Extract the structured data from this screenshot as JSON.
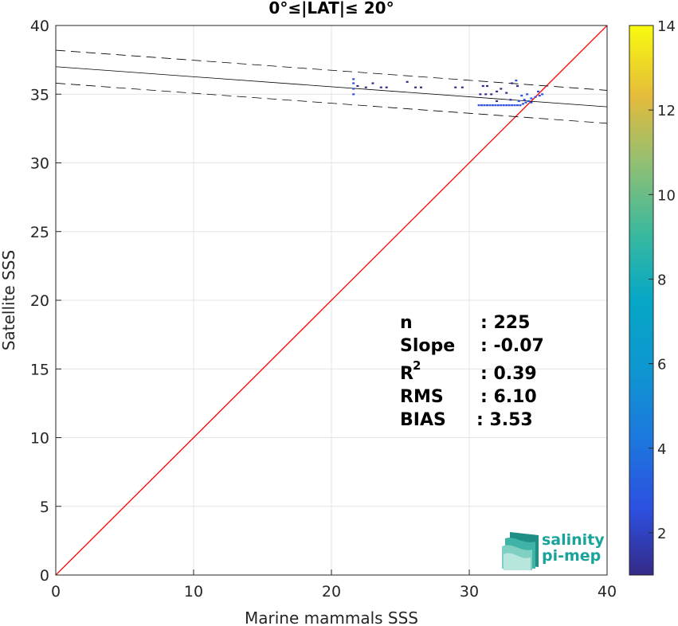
{
  "chart_data": {
    "type": "scatter",
    "title": "0°≤|LAT|≤ 20°",
    "xlabel": "Marine mammals SSS",
    "ylabel": "Satellite SSS",
    "xlim": [
      0,
      40
    ],
    "ylim": [
      0,
      40
    ],
    "xticks": [
      "0",
      "10",
      "20",
      "30",
      "40"
    ],
    "yticks": [
      "0",
      "5",
      "10",
      "15",
      "20",
      "25",
      "30",
      "35",
      "40"
    ],
    "grid": true,
    "colorbar": {
      "range": [
        1,
        14
      ],
      "ticks": [
        "2",
        "4",
        "6",
        "8",
        "10",
        "12",
        "14"
      ],
      "colormap": "parula"
    },
    "identity_line": {
      "color": "#ff0000",
      "from": [
        0,
        0
      ],
      "to": [
        40,
        40
      ]
    },
    "regression_line": {
      "intercept": 37.0,
      "slope": -0.073,
      "color": "#000000"
    },
    "confidence_band": {
      "offset": 1.2,
      "style": "dashed",
      "color": "#000000"
    },
    "points": [
      {
        "x": 21.6,
        "y": 35.0,
        "c": 2
      },
      {
        "x": 21.6,
        "y": 35.4,
        "c": 2
      },
      {
        "x": 21.6,
        "y": 35.8,
        "c": 2
      },
      {
        "x": 21.6,
        "y": 36.1,
        "c": 2
      },
      {
        "x": 21.9,
        "y": 35.6,
        "c": 1
      },
      {
        "x": 22.5,
        "y": 35.5,
        "c": 1
      },
      {
        "x": 23.0,
        "y": 35.8,
        "c": 1
      },
      {
        "x": 23.6,
        "y": 35.5,
        "c": 1
      },
      {
        "x": 24.0,
        "y": 35.5,
        "c": 1
      },
      {
        "x": 25.5,
        "y": 35.9,
        "c": 1
      },
      {
        "x": 26.1,
        "y": 35.5,
        "c": 1
      },
      {
        "x": 26.5,
        "y": 35.5,
        "c": 1
      },
      {
        "x": 29.0,
        "y": 35.5,
        "c": 1
      },
      {
        "x": 29.5,
        "y": 35.5,
        "c": 1
      },
      {
        "x": 30.8,
        "y": 35.0,
        "c": 1
      },
      {
        "x": 31.0,
        "y": 35.6,
        "c": 1
      },
      {
        "x": 31.3,
        "y": 35.6,
        "c": 1
      },
      {
        "x": 31.2,
        "y": 35.0,
        "c": 1
      },
      {
        "x": 31.6,
        "y": 35.0,
        "c": 1
      },
      {
        "x": 32.0,
        "y": 35.2,
        "c": 1
      },
      {
        "x": 32.3,
        "y": 35.4,
        "c": 1
      },
      {
        "x": 32.7,
        "y": 35.1,
        "c": 1
      },
      {
        "x": 33.1,
        "y": 35.8,
        "c": 1
      },
      {
        "x": 33.4,
        "y": 36.0,
        "c": 2
      },
      {
        "x": 33.5,
        "y": 35.6,
        "c": 1
      },
      {
        "x": 33.8,
        "y": 34.9,
        "c": 2
      },
      {
        "x": 34.2,
        "y": 35.0,
        "c": 2
      },
      {
        "x": 34.5,
        "y": 34.7,
        "c": 2
      },
      {
        "x": 34.8,
        "y": 34.8,
        "c": 3
      },
      {
        "x": 35.0,
        "y": 35.2,
        "c": 3
      },
      {
        "x": 35.1,
        "y": 34.9,
        "c": 3
      },
      {
        "x": 35.3,
        "y": 35.0,
        "c": 3
      },
      {
        "x": 30.7,
        "y": 34.2,
        "c": 2
      },
      {
        "x": 30.9,
        "y": 34.2,
        "c": 2
      },
      {
        "x": 31.1,
        "y": 34.2,
        "c": 2
      },
      {
        "x": 31.3,
        "y": 34.2,
        "c": 2
      },
      {
        "x": 31.5,
        "y": 34.2,
        "c": 2
      },
      {
        "x": 31.7,
        "y": 34.2,
        "c": 2
      },
      {
        "x": 31.9,
        "y": 34.2,
        "c": 2
      },
      {
        "x": 32.1,
        "y": 34.2,
        "c": 2
      },
      {
        "x": 32.3,
        "y": 34.2,
        "c": 2
      },
      {
        "x": 32.5,
        "y": 34.2,
        "c": 2
      },
      {
        "x": 32.7,
        "y": 34.2,
        "c": 2
      },
      {
        "x": 32.9,
        "y": 34.2,
        "c": 2
      },
      {
        "x": 33.1,
        "y": 34.2,
        "c": 2
      },
      {
        "x": 33.3,
        "y": 34.2,
        "c": 2
      },
      {
        "x": 33.5,
        "y": 34.2,
        "c": 2
      },
      {
        "x": 33.7,
        "y": 34.2,
        "c": 2
      },
      {
        "x": 33.9,
        "y": 34.3,
        "c": 3
      },
      {
        "x": 34.1,
        "y": 34.4,
        "c": 3
      },
      {
        "x": 34.3,
        "y": 34.5,
        "c": 3
      },
      {
        "x": 34.5,
        "y": 34.4,
        "c": 3
      },
      {
        "x": 32.0,
        "y": 34.5,
        "c": 1
      },
      {
        "x": 33.0,
        "y": 34.6,
        "c": 1
      },
      {
        "x": 33.6,
        "y": 34.5,
        "c": 2
      },
      {
        "x": 34.0,
        "y": 34.6,
        "c": 2
      }
    ]
  },
  "stats": {
    "n_label": "n",
    "n_value": ": 225",
    "slope_label": "Slope",
    "slope_value": ": -0.07",
    "r2_label": "R",
    "r2_sup": "2",
    "r2_value": ": 0.39",
    "rms_label": "RMS",
    "rms_value": ": 6.10",
    "bias_label": "BIAS",
    "bias_value": ": 3.53"
  },
  "logo": {
    "line1": "salinity",
    "line2": "pi-mep"
  }
}
